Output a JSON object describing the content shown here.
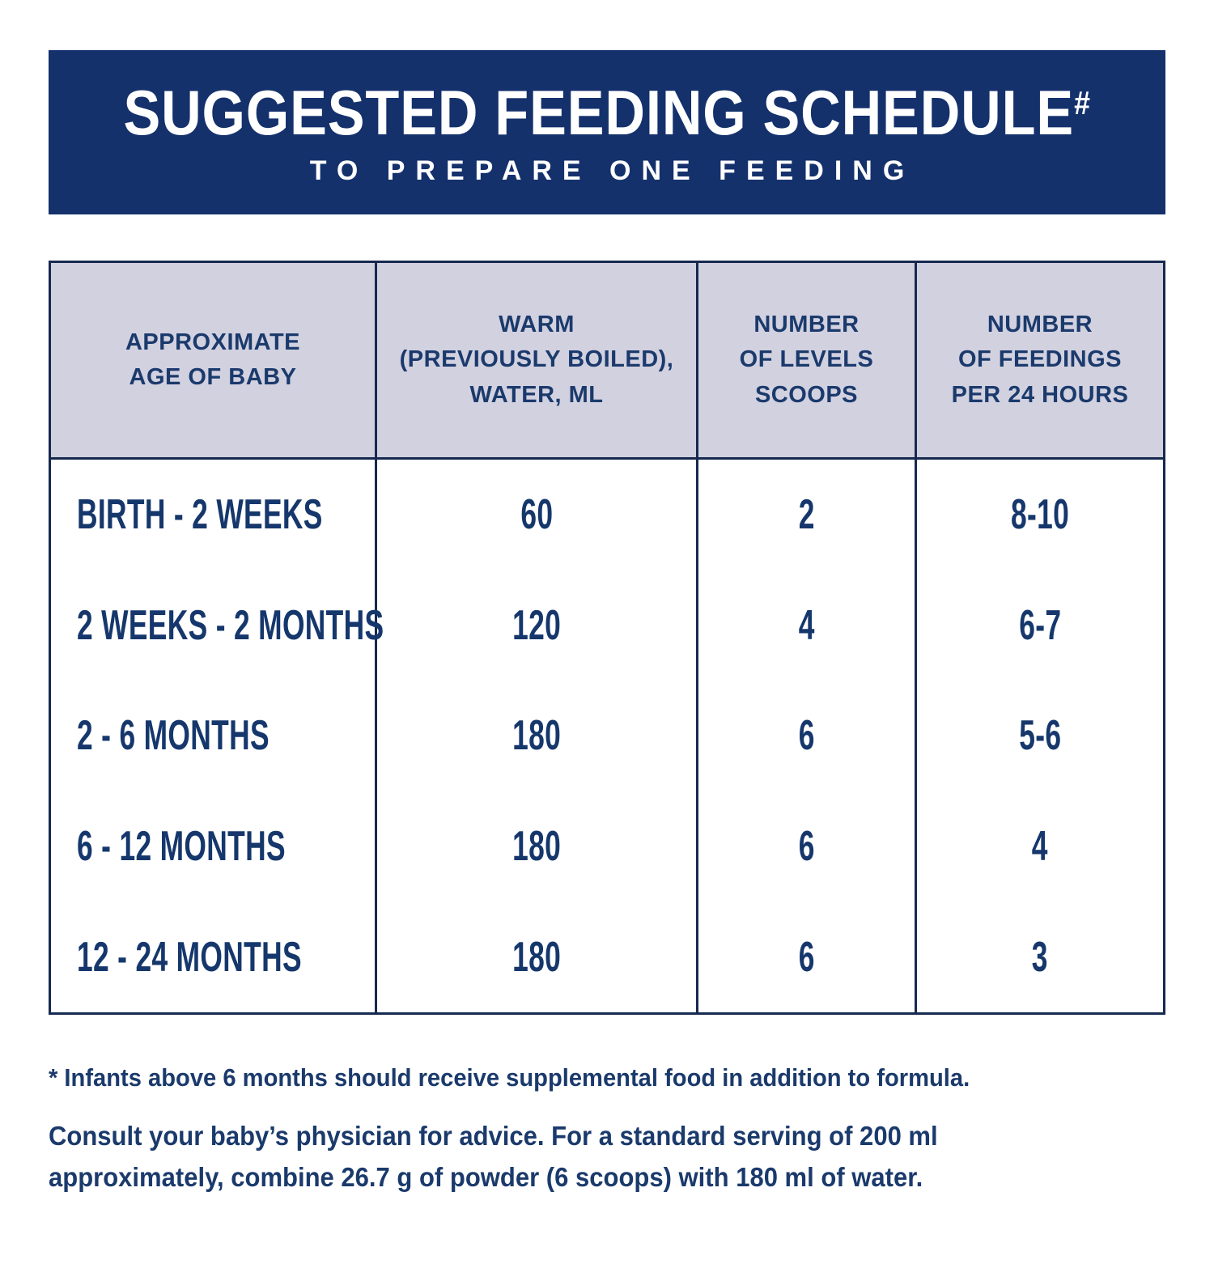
{
  "banner": {
    "title": "SUGGESTED FEEDING SCHEDULE",
    "superscript": "#",
    "subtitle": "TO PREPARE ONE FEEDING",
    "bg_color": "#14316C",
    "text_color": "#FFFFFF"
  },
  "table": {
    "headers": [
      "APPROXIMATE\nAGE OF BABY",
      "WARM\n(PREVIOUSLY BOILED),\nWATER, ML",
      "NUMBER\nOF LEVELS\nSCOOPS",
      "NUMBER\nOF FEEDINGS\nPER 24 HOURS"
    ],
    "header_bg_color": "#D2D1E0",
    "border_color": "#16294F",
    "text_color": "#15376C"
  },
  "chart_data": {
    "type": "table",
    "title": "SUGGESTED FEEDING SCHEDULE#",
    "subtitle": "TO PREPARE ONE FEEDING",
    "columns": [
      "APPROXIMATE AGE OF BABY",
      "WARM (PREVIOUSLY BOILED), WATER, ML",
      "NUMBER OF LEVELS SCOOPS",
      "NUMBER OF FEEDINGS PER 24 HOURS"
    ],
    "rows": [
      [
        "BIRTH - 2 WEEKS",
        "60",
        "2",
        "8-10"
      ],
      [
        "2 WEEKS - 2 MONTHS",
        "120",
        "4",
        "6-7"
      ],
      [
        "2 - 6 MONTHS",
        "180",
        "6",
        "5-6"
      ],
      [
        "6 - 12 MONTHS",
        "180",
        "6",
        "4"
      ],
      [
        "12 - 24 MONTHS",
        "180",
        "6",
        "3"
      ]
    ]
  },
  "footnotes": {
    "asterisk_note": "* Infants above 6 months should receive supplemental food in addition to formula.",
    "consult_note": "Consult your baby’s physician for advice. For a standard serving of 200 ml\napproximately, combine 26.7 g of powder (6 scoops) with 180 ml of water."
  }
}
